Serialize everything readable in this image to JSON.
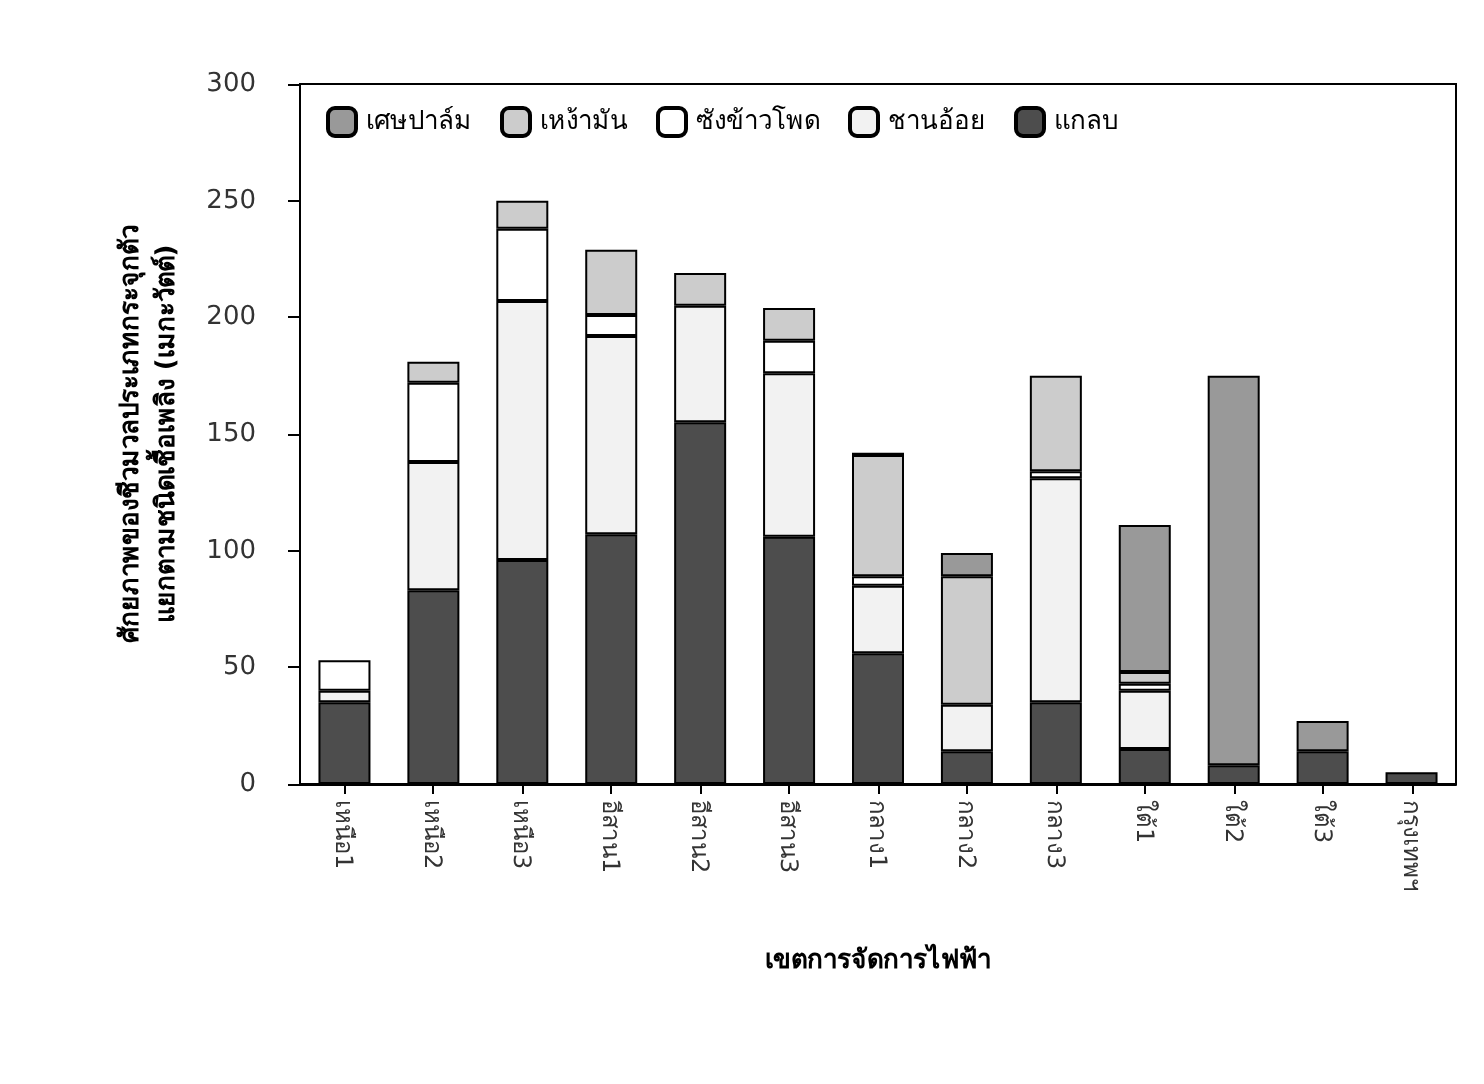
{
  "chart_data": {
    "type": "bar",
    "stacked": true,
    "xlabel": "เขตการจัดการไฟฟ้า",
    "ylabel": "ศักยภาพของชีวมวลประเภทกระจุกตัว\nแยกตามชนิดเชื้อเพลิง (เมกะวัตต์)",
    "categories": [
      "เหนือ1",
      "เหนือ2",
      "เหนือ3",
      "อีสาน1",
      "อีสาน2",
      "อีสาน3",
      "กลาง1",
      "กลาง2",
      "กลาง3",
      "ใต้1",
      "ใต้2",
      "ใต้3",
      "กรุงเทพฯ"
    ],
    "series": [
      {
        "name": "แกลบ",
        "color": "#4d4d4d",
        "values": [
          35,
          83,
          96,
          107,
          155,
          106,
          56,
          14,
          35,
          15,
          8,
          14,
          5
        ]
      },
      {
        "name": "ชานอ้อย",
        "color": "#f2f2f2",
        "values": [
          5,
          55,
          111,
          85,
          50,
          70,
          29,
          20,
          96,
          25,
          0,
          0,
          0
        ]
      },
      {
        "name": "ซังข้าวโพด",
        "color": "#ffffff",
        "values": [
          13,
          34,
          31,
          9,
          0,
          14,
          4,
          null,
          3,
          3,
          0,
          0,
          0
        ]
      },
      {
        "name": "เหง้ามัน",
        "color": "#cccccc",
        "values": [
          0,
          9,
          12,
          28,
          14,
          14,
          52,
          55,
          41,
          5,
          0,
          0,
          0
        ]
      },
      {
        "name": "เศษปาล์ม",
        "color": "#999999",
        "values": [
          0,
          0,
          0,
          0,
          0,
          0,
          1,
          10,
          0,
          63,
          167,
          13,
          0
        ]
      }
    ],
    "ylim": [
      0,
      300
    ],
    "yticks": [
      0,
      50,
      100,
      150,
      200,
      250,
      300
    ],
    "legend": "top left"
  }
}
